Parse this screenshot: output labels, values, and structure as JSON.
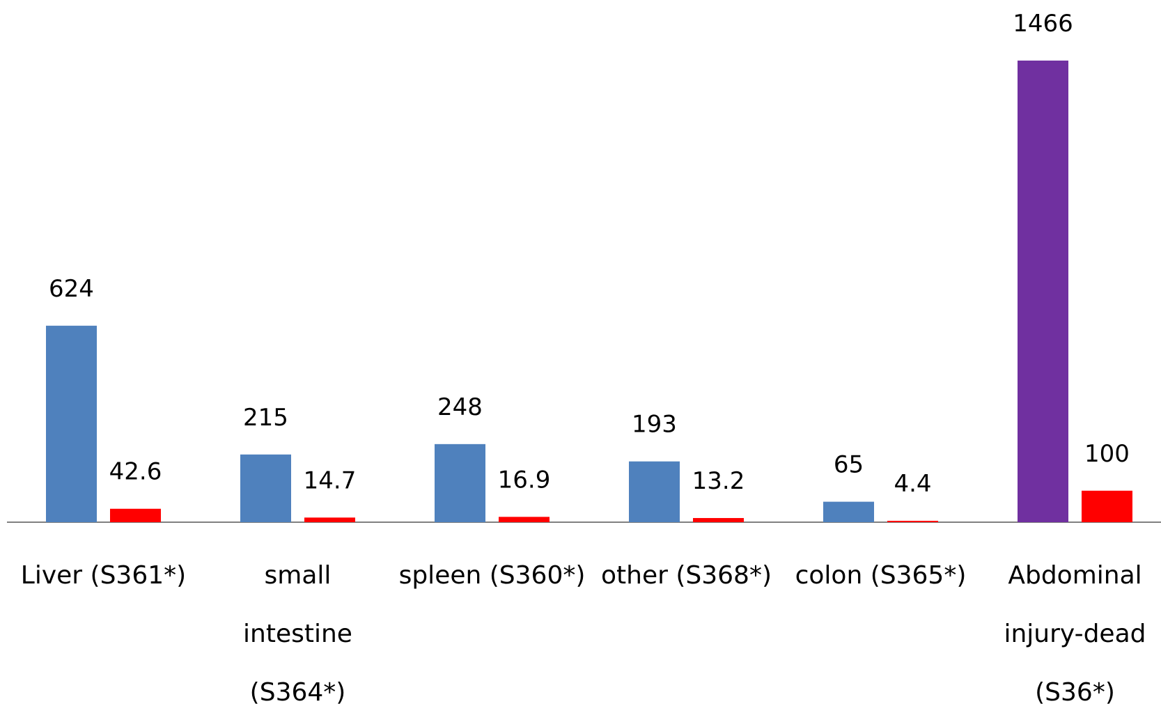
{
  "chart_data": {
    "type": "bar",
    "categories": [
      [
        "Liver (S361*)"
      ],
      [
        "small",
        "intestine",
        "(S364*)"
      ],
      [
        "spleen (S360*)"
      ],
      [
        "other (S368*)"
      ],
      [
        "colon (S365*)"
      ],
      [
        "Abdominal",
        "injury-dead",
        "(S36*)"
      ]
    ],
    "series": [
      {
        "values": [
          624,
          215,
          248,
          193,
          65,
          1466
        ],
        "labels": [
          "624",
          "215",
          "248",
          "193",
          "65",
          "1466"
        ],
        "color": "#4F81BD",
        "highlight": {
          "index": 5,
          "color": "#7030A0"
        }
      },
      {
        "values": [
          42.6,
          14.7,
          16.9,
          13.2,
          4.4,
          100
        ],
        "labels": [
          "42.6",
          "14.7",
          "16.9",
          "13.2",
          "4.4",
          "100"
        ],
        "color": "#FF0000"
      }
    ],
    "ylim": [
      0,
      1466
    ],
    "grid": false,
    "legend": false
  }
}
